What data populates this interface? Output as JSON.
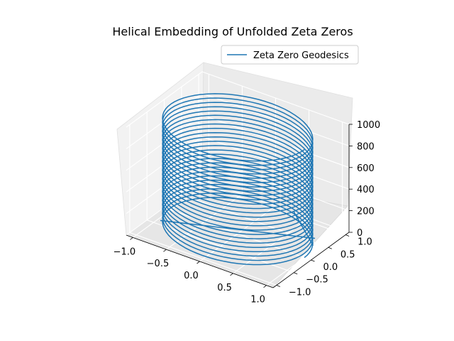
{
  "chart_data": {
    "type": "line",
    "projection": "3d",
    "title": "Helical Embedding of Unfolded Zeta Zeros",
    "xlabel": "",
    "ylabel": "",
    "zlabel": "",
    "xlim": [
      -1.1,
      1.1
    ],
    "ylim": [
      -1.1,
      1.1
    ],
    "zlim": [
      0,
      1000
    ],
    "x_ticks": [
      "−1.0",
      "−0.5",
      "0.0",
      "0.5",
      "1.0"
    ],
    "y_ticks": [
      "−1.0",
      "−0.5",
      "0.0",
      "0.5",
      "1.0"
    ],
    "z_ticks": [
      "0",
      "200",
      "400",
      "600",
      "800",
      "1000"
    ],
    "grid": true,
    "legend_position": "top-right",
    "series": [
      {
        "name": "Zeta Zero Geodesics",
        "color": "#1f77b4",
        "shape": "helix",
        "radius": 1.0,
        "z_start": 0,
        "z_end": 1000,
        "turns_approx": 25
      }
    ]
  }
}
